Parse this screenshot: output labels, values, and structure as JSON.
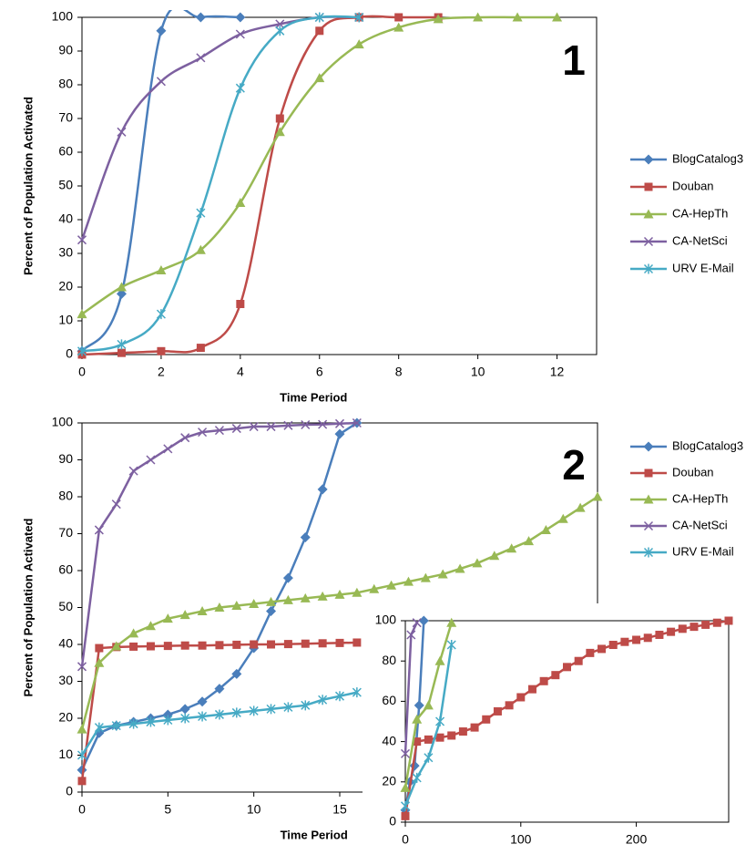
{
  "chart_data": [
    {
      "type": "line",
      "label": "1",
      "smooth": true,
      "legend": "right",
      "xlabel": "Time Period",
      "ylabel": "Percent of Population Activated",
      "xlim": [
        0,
        13
      ],
      "xticks": [
        0,
        2,
        4,
        6,
        8,
        10,
        12
      ],
      "ylim": [
        0,
        100
      ],
      "yticks": [
        0,
        10,
        20,
        30,
        40,
        50,
        60,
        70,
        80,
        90,
        100
      ],
      "series": [
        {
          "name": "BlogCatalog3",
          "color": "#4a7ebb",
          "marker": "diamond",
          "x": [
            0,
            1,
            2,
            3,
            4
          ],
          "values": [
            1,
            18,
            96,
            100,
            100
          ]
        },
        {
          "name": "Douban",
          "color": "#be4b48",
          "marker": "square",
          "x": [
            0,
            1,
            2,
            3,
            4,
            5,
            6,
            7,
            8,
            9
          ],
          "values": [
            0,
            0.5,
            1,
            2,
            15,
            70,
            96,
            100,
            100,
            100
          ]
        },
        {
          "name": "CA-HepTh",
          "color": "#98b954",
          "marker": "triangle",
          "x": [
            0,
            1,
            2,
            3,
            4,
            5,
            6,
            7,
            8,
            9,
            10,
            11,
            12
          ],
          "values": [
            12,
            20,
            25,
            31,
            45,
            66,
            82,
            92,
            97,
            99.5,
            100,
            100,
            100
          ]
        },
        {
          "name": "CA-NetSci",
          "color": "#7d60a0",
          "marker": "x",
          "x": [
            0,
            1,
            2,
            3,
            4,
            5,
            6,
            7
          ],
          "values": [
            34,
            66,
            81,
            88,
            95,
            98,
            100,
            100
          ]
        },
        {
          "name": "URV E-Mail",
          "color": "#46aac5",
          "marker": "star",
          "x": [
            0,
            1,
            2,
            3,
            4,
            5,
            6,
            7
          ],
          "values": [
            1,
            3,
            12,
            42,
            79,
            96,
            100,
            100
          ]
        }
      ]
    },
    {
      "type": "line",
      "label": "2",
      "smooth": false,
      "legend": "right",
      "xlabel": "Time Period",
      "ylabel": "Percent of Population Activated",
      "xlim": [
        0,
        30
      ],
      "xticks": [
        0,
        5,
        10,
        15
      ],
      "ylim": [
        0,
        100
      ],
      "yticks": [
        0,
        10,
        20,
        30,
        40,
        50,
        60,
        70,
        80,
        90,
        100
      ],
      "series": [
        {
          "name": "BlogCatalog3",
          "color": "#4a7ebb",
          "marker": "diamond",
          "x": [
            0,
            1,
            2,
            3,
            4,
            5,
            6,
            7,
            8,
            9,
            10,
            11,
            12,
            13,
            14,
            15,
            16
          ],
          "values": [
            6,
            16,
            18,
            19,
            20,
            21,
            22.5,
            24.5,
            28,
            32,
            39,
            49,
            58,
            69,
            82,
            97,
            100
          ]
        },
        {
          "name": "Douban",
          "color": "#be4b48",
          "marker": "square",
          "x": [
            0,
            1,
            2,
            3,
            4,
            5,
            6,
            7,
            8,
            9,
            10,
            11,
            12,
            13,
            14,
            15,
            16
          ],
          "values": [
            3,
            39,
            39.3,
            39.4,
            39.5,
            39.6,
            39.7,
            39.7,
            39.8,
            39.9,
            40,
            40,
            40.1,
            40.2,
            40.3,
            40.4,
            40.5
          ]
        },
        {
          "name": "CA-HepTh",
          "color": "#98b954",
          "marker": "triangle",
          "x": [
            0,
            1,
            2,
            3,
            4,
            5,
            6,
            7,
            8,
            9,
            10,
            11,
            12,
            13,
            14,
            15,
            16,
            17,
            18,
            19,
            20,
            21,
            22,
            23,
            24,
            25,
            26,
            27,
            28,
            29,
            30
          ],
          "values": [
            17,
            35,
            39.5,
            43,
            45,
            47,
            48,
            49,
            50,
            50.5,
            51,
            51.5,
            52,
            52.5,
            53,
            53.5,
            54,
            55,
            56,
            57,
            58,
            59,
            60.5,
            62,
            64,
            66,
            68,
            71,
            74,
            77,
            80
          ]
        },
        {
          "name": "CA-NetSci",
          "color": "#7d60a0",
          "marker": "x",
          "x": [
            0,
            1,
            2,
            3,
            4,
            5,
            6,
            7,
            8,
            9,
            10,
            11,
            12,
            13,
            14,
            15,
            16
          ],
          "values": [
            34,
            71,
            78,
            87,
            90,
            93,
            96,
            97.5,
            98,
            98.5,
            99,
            99,
            99.3,
            99.5,
            99.6,
            99.8,
            100
          ]
        },
        {
          "name": "URV E-Mail",
          "color": "#46aac5",
          "marker": "star",
          "x": [
            0,
            1,
            2,
            3,
            4,
            5,
            6,
            7,
            8,
            9,
            10,
            11,
            12,
            13,
            14,
            15,
            16
          ],
          "values": [
            10,
            17.5,
            18,
            18.5,
            19,
            19.5,
            20,
            20.5,
            21,
            21.5,
            22,
            22.5,
            23,
            23.5,
            25,
            26,
            27
          ]
        }
      ]
    },
    {
      "type": "line",
      "smooth": false,
      "xlim": [
        0,
        280
      ],
      "xticks": [
        0,
        100,
        200
      ],
      "ylim": [
        0,
        100
      ],
      "yticks": [
        0,
        20,
        40,
        60,
        80,
        100
      ],
      "series": [
        {
          "color": "#4a7ebb",
          "marker": "diamond",
          "x": [
            0,
            4,
            8,
            12,
            16
          ],
          "values": [
            6,
            20,
            28,
            58,
            100
          ]
        },
        {
          "color": "#be4b48",
          "marker": "square",
          "x": [
            0,
            10,
            20,
            30,
            40,
            50,
            60,
            70,
            80,
            90,
            100,
            110,
            120,
            130,
            140,
            150,
            160,
            170,
            180,
            190,
            200,
            210,
            220,
            230,
            240,
            250,
            260,
            270,
            280
          ],
          "values": [
            3,
            40,
            41,
            42,
            43,
            45,
            47,
            51,
            55,
            58,
            62,
            66,
            70,
            73,
            77,
            80,
            84,
            86,
            88,
            89.5,
            90.5,
            91.5,
            93,
            94.5,
            96,
            97,
            98,
            99,
            100
          ]
        },
        {
          "color": "#98b954",
          "marker": "triangle",
          "x": [
            0,
            10,
            20,
            30,
            40
          ],
          "values": [
            17,
            51,
            58,
            80,
            99
          ]
        },
        {
          "color": "#7d60a0",
          "marker": "x",
          "x": [
            0,
            5,
            10
          ],
          "values": [
            34,
            93,
            99
          ]
        },
        {
          "color": "#46aac5",
          "marker": "star",
          "x": [
            0,
            10,
            20,
            30,
            40
          ],
          "values": [
            8,
            22,
            32,
            50,
            88
          ]
        }
      ]
    }
  ]
}
